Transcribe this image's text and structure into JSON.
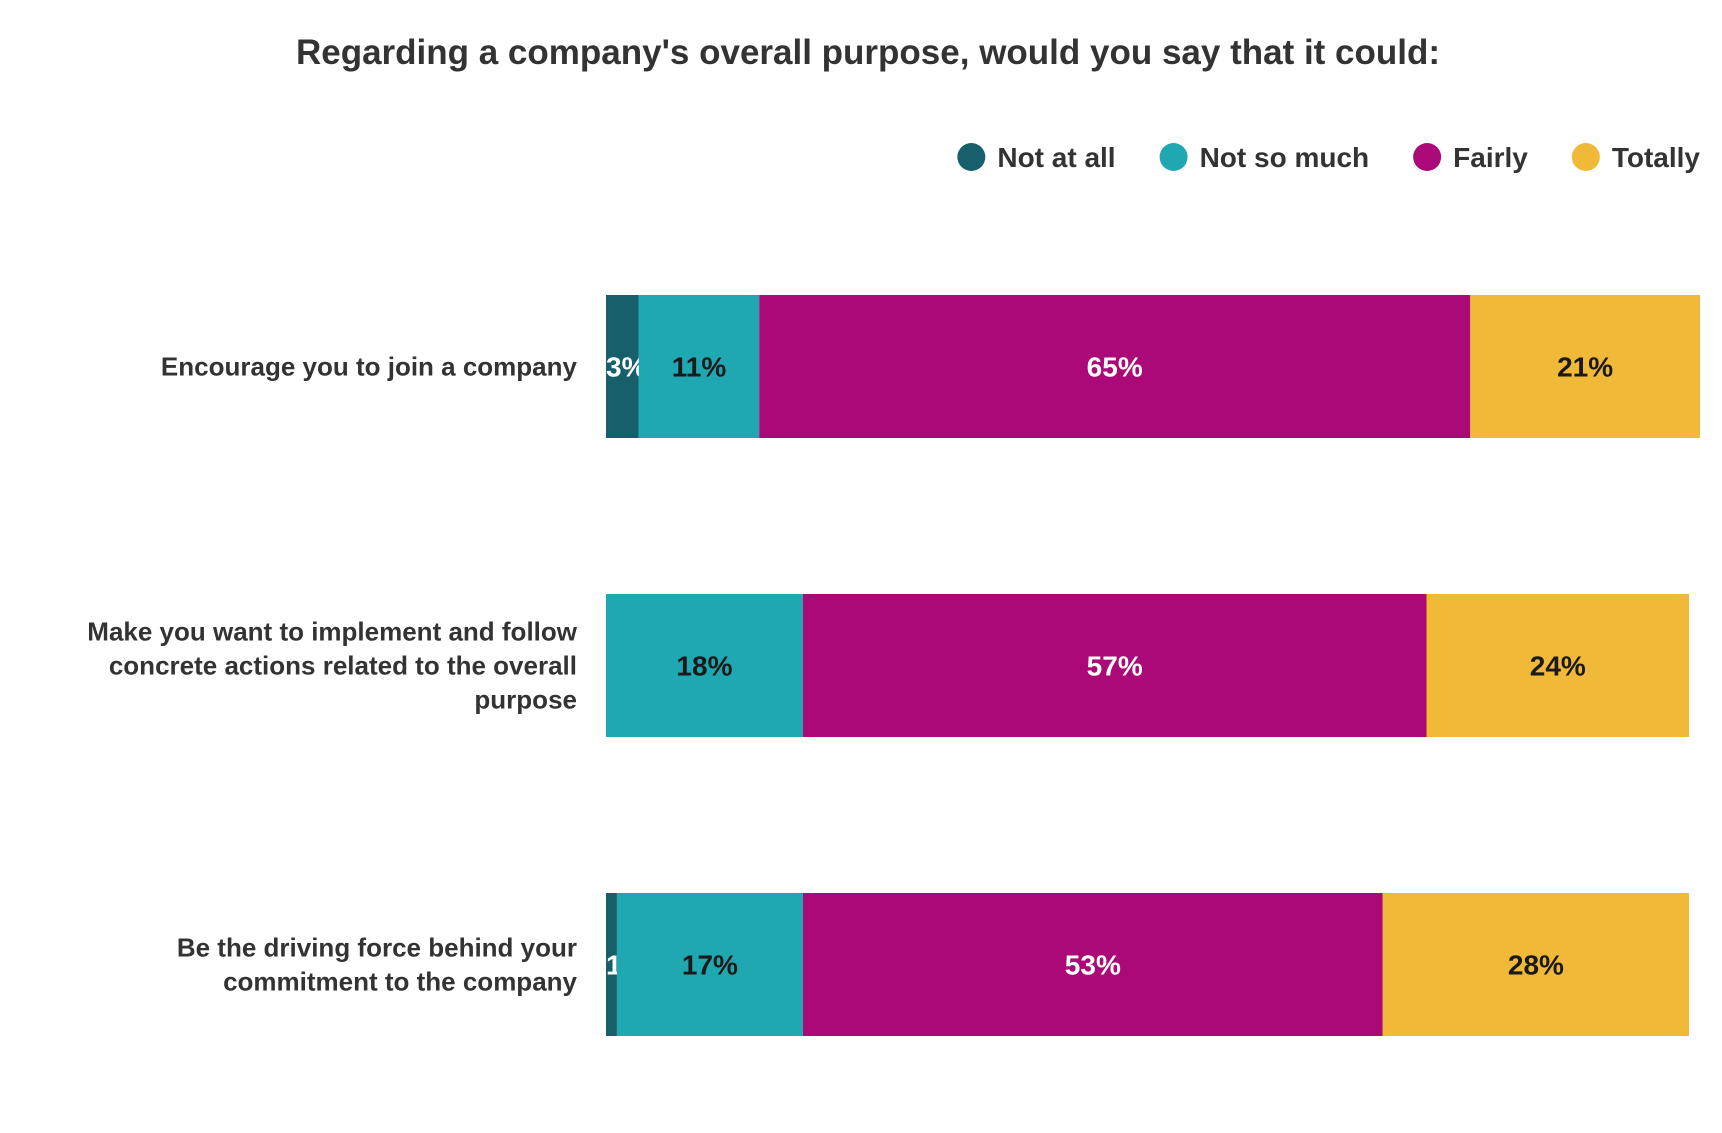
{
  "chart_data": {
    "type": "bar",
    "orientation": "horizontal",
    "stacked": true,
    "title": "Regarding a company's overall purpose, would you say that it could:",
    "categories": [
      "Encourage you to join a company",
      "Make you want to implement and follow concrete actions related to the overall purpose",
      "Be the driving force behind your commitment to the company"
    ],
    "category_label_lines": [
      [
        "Encourage you to join a company"
      ],
      [
        "Make you want to implement and follow",
        "concrete actions related to the overall",
        "purpose"
      ],
      [
        "Be the driving force behind your",
        "commitment to the company"
      ]
    ],
    "series": [
      {
        "name": "Not at all",
        "color": "#17606b",
        "label_color": "#ffffff",
        "values": [
          3,
          0,
          1
        ]
      },
      {
        "name": "Not so much",
        "color": "#20a8b2",
        "label_color": "#1a1a1a",
        "values": [
          11,
          18,
          17
        ]
      },
      {
        "name": "Fairly",
        "color": "#ab0977",
        "label_color": "#ffffff",
        "values": [
          65,
          57,
          53
        ]
      },
      {
        "name": "Totally",
        "color": "#f0b937",
        "label_color": "#1a1a1a",
        "values": [
          21,
          24,
          28
        ]
      }
    ],
    "value_suffix": "%",
    "xlim": [
      0,
      100
    ],
    "legend_position": "top-right",
    "grid": false
  },
  "colors": {
    "title_text": "#333333",
    "category_text": "#333333",
    "legend_text": "#333333",
    "background": "#ffffff"
  }
}
